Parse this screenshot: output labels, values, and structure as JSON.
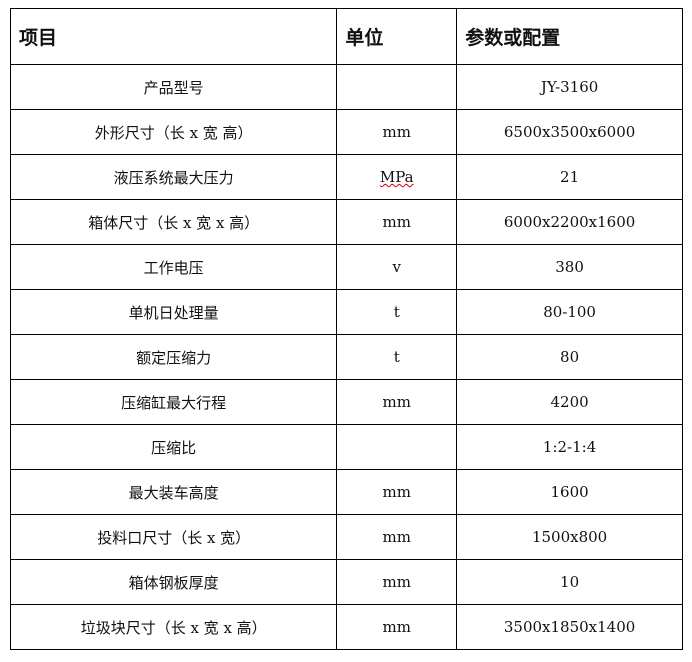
{
  "headers": [
    "项目",
    "单位",
    "参数或配置"
  ],
  "rows": [
    {
      "item": "产品型号",
      "unit": "",
      "value": "JY-3160"
    },
    {
      "item": "外形尺寸（长 x 宽 高）",
      "unit": "mm",
      "value": "6500x3500x6000"
    },
    {
      "item": "液压系统最大压力",
      "unit": "MPa",
      "value": "21"
    },
    {
      "item": "箱体尺寸（长 x 宽 x 高）",
      "unit": "mm",
      "value": "6000x2200x1600"
    },
    {
      "item": "工作电压",
      "unit": "v",
      "value": "380"
    },
    {
      "item": "单机日处理量",
      "unit": "t",
      "value": "80-100"
    },
    {
      "item": "额定压缩力",
      "unit": "t",
      "value": "80"
    },
    {
      "item": "压缩缸最大行程",
      "unit": "mm",
      "value": "4200"
    },
    {
      "item": "压缩比",
      "unit": "",
      "value": "1:2-1:4"
    },
    {
      "item": "最大装车高度",
      "unit": "mm",
      "value": "1600"
    },
    {
      "item": "投料口尺寸（长 x 宽）",
      "unit": "mm",
      "value": "1500x800"
    },
    {
      "item": "箱体钢板厚度",
      "unit": "mm",
      "value": "10"
    },
    {
      "item": "垃圾块尺寸（长 x 宽 x 高）",
      "unit": "mm",
      "value": "3500x1850x1400"
    }
  ]
}
